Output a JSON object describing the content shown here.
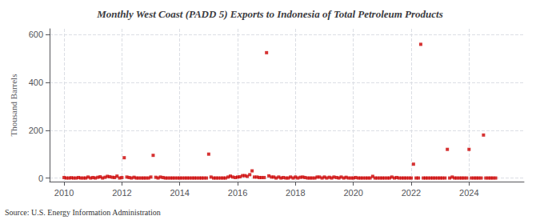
{
  "chart_data": {
    "type": "scatter",
    "title": "Monthly West Coast (PADD 5) Exports to Indonesia of Total Petroleum Products",
    "ylabel": "Thousand Barrels",
    "annotation": "Source: U.S. Energy Information Administration",
    "color": "#cc0000",
    "marker": "square",
    "grid": true,
    "xlim": [
      2009.5,
      2025.9
    ],
    "ylim": [
      -15,
      625
    ],
    "xticks": [
      2010,
      2012,
      2014,
      2016,
      2018,
      2020,
      2022,
      2024
    ],
    "yticks": [
      0,
      200,
      400,
      600
    ],
    "x": [
      2010.0,
      2010.08,
      2010.17,
      2010.25,
      2010.33,
      2010.42,
      2010.5,
      2010.58,
      2010.67,
      2010.75,
      2010.83,
      2010.92,
      2011.0,
      2011.08,
      2011.17,
      2011.25,
      2011.33,
      2011.42,
      2011.5,
      2011.58,
      2011.67,
      2011.75,
      2011.83,
      2011.92,
      2012.0,
      2012.08,
      2012.17,
      2012.25,
      2012.33,
      2012.42,
      2012.5,
      2012.58,
      2012.67,
      2012.75,
      2012.83,
      2012.92,
      2013.0,
      2013.08,
      2013.17,
      2013.25,
      2013.33,
      2013.42,
      2013.5,
      2013.58,
      2013.67,
      2013.75,
      2013.83,
      2013.92,
      2014.0,
      2014.08,
      2014.17,
      2014.25,
      2014.33,
      2014.42,
      2014.5,
      2014.58,
      2014.67,
      2014.75,
      2014.83,
      2014.92,
      2015.0,
      2015.08,
      2015.17,
      2015.25,
      2015.33,
      2015.42,
      2015.5,
      2015.58,
      2015.67,
      2015.75,
      2015.83,
      2015.92,
      2016.0,
      2016.08,
      2016.17,
      2016.25,
      2016.33,
      2016.42,
      2016.5,
      2016.58,
      2016.67,
      2016.75,
      2016.83,
      2016.92,
      2017.0,
      2017.08,
      2017.17,
      2017.25,
      2017.33,
      2017.42,
      2017.5,
      2017.58,
      2017.67,
      2017.75,
      2017.83,
      2017.92,
      2018.0,
      2018.08,
      2018.17,
      2018.25,
      2018.33,
      2018.42,
      2018.5,
      2018.58,
      2018.67,
      2018.75,
      2018.83,
      2018.92,
      2019.0,
      2019.08,
      2019.17,
      2019.25,
      2019.33,
      2019.42,
      2019.5,
      2019.58,
      2019.67,
      2019.75,
      2019.83,
      2019.92,
      2020.0,
      2020.08,
      2020.17,
      2020.25,
      2020.33,
      2020.42,
      2020.5,
      2020.58,
      2020.67,
      2020.75,
      2020.83,
      2020.92,
      2021.0,
      2021.08,
      2021.17,
      2021.25,
      2021.33,
      2021.42,
      2021.5,
      2021.58,
      2021.67,
      2021.75,
      2021.83,
      2021.92,
      2022.0,
      2022.08,
      2022.17,
      2022.25,
      2022.33,
      2022.42,
      2022.5,
      2022.58,
      2022.67,
      2022.75,
      2022.83,
      2022.92,
      2023.0,
      2023.08,
      2023.17,
      2023.25,
      2023.33,
      2023.42,
      2023.5,
      2023.58,
      2023.67,
      2023.75,
      2023.83,
      2023.92,
      2024.0,
      2024.08,
      2024.17,
      2024.25,
      2024.33,
      2024.42,
      2024.5,
      2024.58,
      2024.67,
      2024.75,
      2024.83,
      2024.92
    ],
    "values": [
      2,
      0,
      0,
      1,
      0,
      0,
      2,
      0,
      0,
      0,
      4,
      0,
      2,
      0,
      3,
      5,
      0,
      3,
      7,
      5,
      3,
      2,
      8,
      0,
      2,
      85,
      4,
      2,
      0,
      3,
      0,
      0,
      0,
      0,
      0,
      0,
      4,
      95,
      3,
      0,
      4,
      2,
      0,
      0,
      0,
      0,
      0,
      0,
      0,
      0,
      0,
      0,
      0,
      0,
      0,
      0,
      0,
      0,
      0,
      0,
      100,
      4,
      0,
      0,
      0,
      0,
      0,
      0,
      4,
      8,
      4,
      2,
      4,
      5,
      10,
      10,
      7,
      14,
      30,
      4,
      4,
      2,
      2,
      2,
      525,
      9,
      4,
      4,
      0,
      4,
      0,
      2,
      0,
      0,
      4,
      0,
      4,
      0,
      3,
      4,
      2,
      0,
      0,
      0,
      0,
      4,
      4,
      0,
      4,
      0,
      3,
      0,
      4,
      2,
      0,
      4,
      0,
      3,
      0,
      0,
      0,
      2,
      0,
      0,
      0,
      0,
      0,
      0,
      7,
      0,
      0,
      0,
      0,
      0,
      0,
      0,
      4,
      0,
      2,
      0,
      0,
      0,
      0,
      0,
      0,
      58,
      0,
      0,
      560,
      0,
      0,
      0,
      0,
      0,
      0,
      0,
      0,
      0,
      0,
      120,
      0,
      4,
      0,
      0,
      0,
      0,
      0,
      0,
      120,
      0,
      0,
      0,
      0,
      0,
      180,
      0,
      0,
      0,
      0,
      0
    ]
  }
}
